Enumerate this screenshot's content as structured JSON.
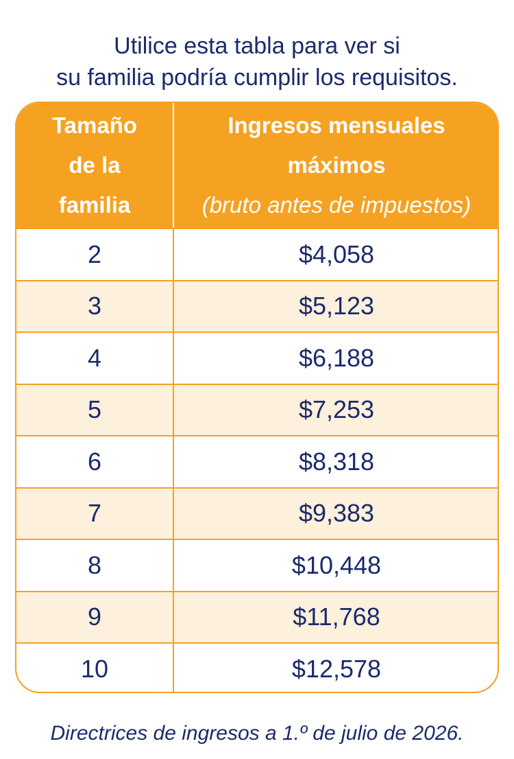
{
  "intro": {
    "line1": "Utilice esta tabla para ver si",
    "line2": "su familia podría cumplir los requisitos."
  },
  "table": {
    "header_size_lines": [
      "Tamaño",
      "de la",
      "familia"
    ],
    "header_income_line1": "Ingresos mensuales",
    "header_income_line2": "máximos",
    "header_income_sub": "(bruto antes de impuestos)",
    "rows": [
      {
        "size": "2",
        "income": "$4,058"
      },
      {
        "size": "3",
        "income": "$5,123"
      },
      {
        "size": "4",
        "income": "$6,188"
      },
      {
        "size": "5",
        "income": "$7,253"
      },
      {
        "size": "6",
        "income": "$8,318"
      },
      {
        "size": "7",
        "income": "$9,383"
      },
      {
        "size": "8",
        "income": "$10,448"
      },
      {
        "size": "9",
        "income": "$11,768"
      },
      {
        "size": "10",
        "income": "$12,578"
      }
    ]
  },
  "footnote": "Directrices de ingresos a 1.º de julio de 2026.",
  "colors": {
    "accent_orange": "#f5a122",
    "stripe": "#fdf0dc",
    "text_navy": "#1b2a6b"
  }
}
